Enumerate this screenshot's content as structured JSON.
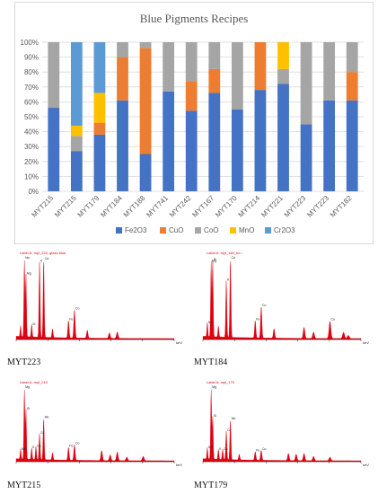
{
  "chart_data": {
    "type": "bar",
    "stacked": true,
    "title": "Blue Pigments Recipes",
    "categories": [
      "MYT215",
      "MYT215",
      "MYT179",
      "MYT184",
      "MYT188",
      "MYT741",
      "MYT242",
      "MYT167",
      "MYT170",
      "MYT214",
      "MYT221",
      "MYT223",
      "MYT223",
      "MYT182"
    ],
    "series": [
      {
        "name": "Fe2O3",
        "color": "#4472c4",
        "values": [
          56,
          27,
          38,
          61,
          25,
          67,
          54,
          66,
          55,
          68,
          72,
          45,
          61,
          61
        ]
      },
      {
        "name": "CuO",
        "color": "#ed7d31",
        "values": [
          0,
          0,
          8,
          29,
          71,
          0,
          20,
          16,
          0,
          32,
          0,
          0,
          0,
          19
        ]
      },
      {
        "name": "CoO",
        "color": "#a5a5a5",
        "values": [
          44,
          10,
          0,
          10,
          4,
          33,
          26,
          18,
          45,
          0,
          10,
          55,
          39,
          20
        ]
      },
      {
        "name": "MnO",
        "color": "#ffc000",
        "values": [
          0,
          7,
          20,
          0,
          0,
          0,
          0,
          0,
          0,
          0,
          18,
          0,
          0,
          0
        ]
      },
      {
        "name": "Cr2O3",
        "color": "#5b9bd5",
        "values": [
          0,
          56,
          34,
          0,
          0,
          0,
          0,
          0,
          0,
          0,
          0,
          0,
          0,
          0
        ]
      }
    ],
    "ylim": [
      0,
      100
    ],
    "yticks": [
      "0%",
      "10%",
      "20%",
      "30%",
      "40%",
      "50%",
      "60%",
      "70%",
      "80%",
      "90%",
      "100%"
    ],
    "grid": true,
    "legend": "bottom"
  },
  "spectra": [
    {
      "label": "MYT223",
      "header": "Label A: myt_223, glaze blue",
      "axis": "keV",
      "color": "#e0000f",
      "peaks": [
        [
          0.28,
          14
        ],
        [
          0.52,
          100
        ],
        [
          0.62,
          80
        ],
        [
          0.98,
          16
        ],
        [
          1.48,
          96
        ],
        [
          1.74,
          99
        ],
        [
          2.3,
          11
        ],
        [
          3.31,
          22
        ],
        [
          3.69,
          36
        ],
        [
          4.5,
          10
        ],
        [
          5.9,
          7
        ],
        [
          6.4,
          8
        ]
      ],
      "tags": [
        "Na",
        "Mg",
        "Si",
        "K",
        "Ca",
        "Fe",
        "Co"
      ]
    },
    {
      "label": "MYT184",
      "header": "Label A: myt_184_bo...",
      "axis": "keV",
      "color": "#e0000f",
      "peaks": [
        [
          0.28,
          18
        ],
        [
          0.52,
          96
        ],
        [
          0.62,
          98
        ],
        [
          0.98,
          14
        ],
        [
          1.48,
          72
        ],
        [
          1.74,
          100
        ],
        [
          3.31,
          22
        ],
        [
          3.69,
          40
        ],
        [
          4.5,
          12
        ],
        [
          6.4,
          14
        ],
        [
          7.0,
          8
        ],
        [
          8.04,
          22
        ],
        [
          8.9,
          8
        ],
        [
          9.2,
          4
        ]
      ],
      "tags": [
        "Na",
        "Mg",
        "Si",
        "K",
        "Ca",
        "Fe",
        "Co",
        "Cu"
      ]
    },
    {
      "label": "MYT215",
      "header": "Label A: myt_215",
      "axis": "keV",
      "color": "#e0000f",
      "peaks": [
        [
          0.28,
          14
        ],
        [
          0.52,
          100
        ],
        [
          0.62,
          70
        ],
        [
          0.98,
          16
        ],
        [
          1.25,
          18
        ],
        [
          1.48,
          36
        ],
        [
          1.74,
          58
        ],
        [
          2.3,
          10
        ],
        [
          3.31,
          18
        ],
        [
          3.69,
          22
        ],
        [
          5.41,
          14
        ],
        [
          5.95,
          8
        ],
        [
          6.4,
          12
        ],
        [
          7.0,
          5
        ],
        [
          8.04,
          6
        ]
      ],
      "tags": [
        "Na",
        "Mg",
        "Si",
        "K",
        "Ca",
        "Cr",
        "Mn",
        "Fe",
        "Co"
      ]
    },
    {
      "label": "MYT179",
      "header": "Label A: myt_179",
      "axis": "keV",
      "color": "#e0000f",
      "peaks": [
        [
          0.28,
          16
        ],
        [
          0.52,
          100
        ],
        [
          0.62,
          60
        ],
        [
          0.98,
          14
        ],
        [
          1.25,
          14
        ],
        [
          1.48,
          40
        ],
        [
          1.74,
          56
        ],
        [
          2.3,
          8
        ],
        [
          3.31,
          12
        ],
        [
          3.69,
          14
        ],
        [
          5.41,
          10
        ],
        [
          5.9,
          9
        ],
        [
          6.4,
          10
        ],
        [
          7.0,
          6
        ],
        [
          8.04,
          5
        ]
      ],
      "tags": [
        "Na",
        "Mg",
        "Si",
        "K",
        "Ca",
        "Cr",
        "Mn",
        "Fe",
        "Cu"
      ]
    }
  ]
}
